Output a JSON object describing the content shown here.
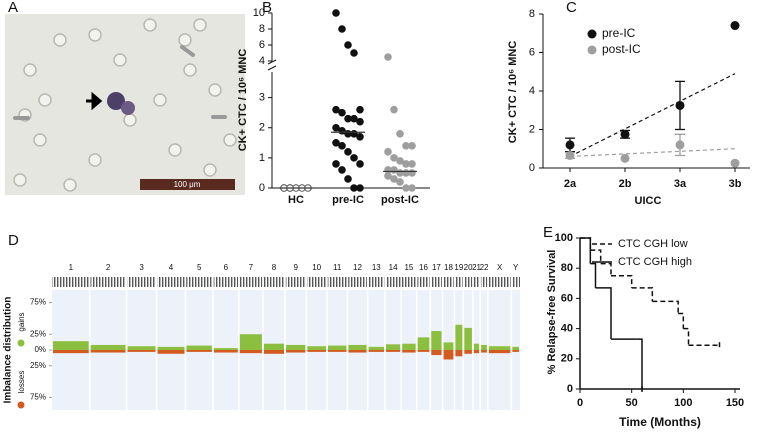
{
  "chart_data": [
    {
      "type": "image",
      "label": "A",
      "scale_bar": "100 μm"
    },
    {
      "type": "dot",
      "label": "B",
      "ylabel": "CK+ CTC / 10⁶ MNC",
      "categories": [
        "HC",
        "pre-IC",
        "post-IC"
      ],
      "colors": [
        "#ffffff",
        "#111111",
        "#9e9e9e"
      ],
      "points": [
        [
          0,
          0,
          0,
          0,
          0,
          0,
          0
        ],
        [
          10,
          8,
          6,
          5,
          2.6,
          2.6,
          2.5,
          2.3,
          2.3,
          2.2,
          2.0,
          1.9,
          1.8,
          1.8,
          1.7,
          1.5,
          1.4,
          1.2,
          1.0,
          0.8,
          0.8,
          0.6,
          0.3,
          0,
          0
        ],
        [
          4.5,
          2.6,
          1.8,
          1.4,
          1.4,
          1.2,
          1.0,
          0.9,
          0.8,
          0.8,
          0.6,
          0.6,
          0.5,
          0.5,
          0.5,
          0.4,
          0.3,
          0.2,
          0,
          0
        ]
      ],
      "medians": [
        0,
        1.85,
        0.55
      ],
      "ylim": [
        0,
        3.85
      ],
      "yticks": [
        0,
        1,
        2,
        3
      ],
      "ylim_upper": [
        4,
        10
      ],
      "yticks_upper": [
        4,
        6,
        8,
        10
      ]
    },
    {
      "type": "errorbar",
      "label": "C",
      "xlabel": "UICC",
      "ylabel": "CK+ CTC / 10⁶ MNC",
      "categories": [
        "2a",
        "2b",
        "3a",
        "3b"
      ],
      "series": [
        {
          "name": "pre-IC",
          "color": "#111111",
          "values": [
            1.2,
            1.75,
            3.25,
            7.4
          ],
          "errors": [
            0.35,
            0.2,
            1.25,
            null
          ],
          "trend": [
            0.6,
            4.9
          ]
        },
        {
          "name": "post-IC",
          "color": "#9e9e9e",
          "values": [
            0.65,
            0.5,
            1.2,
            0.25
          ],
          "errors": [
            0.15,
            null,
            0.55,
            null
          ],
          "trend": [
            0.6,
            1.0
          ]
        }
      ],
      "ylim": [
        0,
        8
      ],
      "yticks": [
        0,
        2,
        4,
        6,
        8
      ]
    },
    {
      "type": "imbalance",
      "label": "D",
      "ylabel": "Imbalance distribution",
      "categories": [
        "1",
        "2",
        "3",
        "4",
        "5",
        "6",
        "7",
        "8",
        "9",
        "10",
        "11",
        "12",
        "13",
        "14",
        "15",
        "16",
        "17",
        "18",
        "19",
        "20",
        "21",
        "22",
        "X",
        "Y"
      ],
      "series": [
        {
          "name": "gains",
          "color": "#8cbf3f",
          "values": [
            14,
            8,
            6,
            5,
            7,
            3,
            25,
            10,
            8,
            6,
            7,
            8,
            5,
            9,
            10,
            20,
            30,
            12,
            40,
            35,
            10,
            8,
            6,
            5
          ]
        },
        {
          "name": "losses",
          "color": "#d45a20",
          "values": [
            -5,
            -4,
            -3,
            -6,
            -3,
            -4,
            -5,
            -6,
            -4,
            -3,
            -3,
            -4,
            -3,
            -3,
            -4,
            -3,
            -8,
            -15,
            -10,
            -6,
            -5,
            -4,
            -5,
            -3
          ]
        }
      ],
      "ylim": [
        -95,
        95
      ],
      "yticks": [
        {
          "value": 75,
          "label": "75%"
        },
        {
          "value": 25,
          "label": "25%"
        },
        {
          "value": 0,
          "label": "0%"
        },
        {
          "value": -25,
          "label": "25%"
        },
        {
          "value": -75,
          "label": "75%"
        }
      ]
    },
    {
      "type": "survival",
      "label": "E",
      "xlabel": "Time (Months)",
      "ylabel": "% Relapse-free Survival",
      "series": [
        {
          "name": "CTC CGH low",
          "color": "#111111",
          "dash": true,
          "x": [
            0,
            10,
            20,
            30,
            50,
            70,
            95,
            100,
            105,
            135
          ],
          "values": [
            100,
            92,
            83,
            75,
            67,
            58,
            50,
            40,
            29,
            29
          ]
        },
        {
          "name": "CTC CGH high",
          "color": "#111111",
          "dash": false,
          "x": [
            0,
            10,
            15,
            30,
            55,
            60
          ],
          "values": [
            100,
            83,
            67,
            33,
            33,
            0
          ]
        }
      ],
      "xlim": [
        0,
        150
      ],
      "xticks": [
        0,
        50,
        100,
        150
      ],
      "ylim": [
        0,
        100
      ],
      "yticks": [
        0,
        20,
        40,
        60,
        80,
        100
      ]
    }
  ]
}
